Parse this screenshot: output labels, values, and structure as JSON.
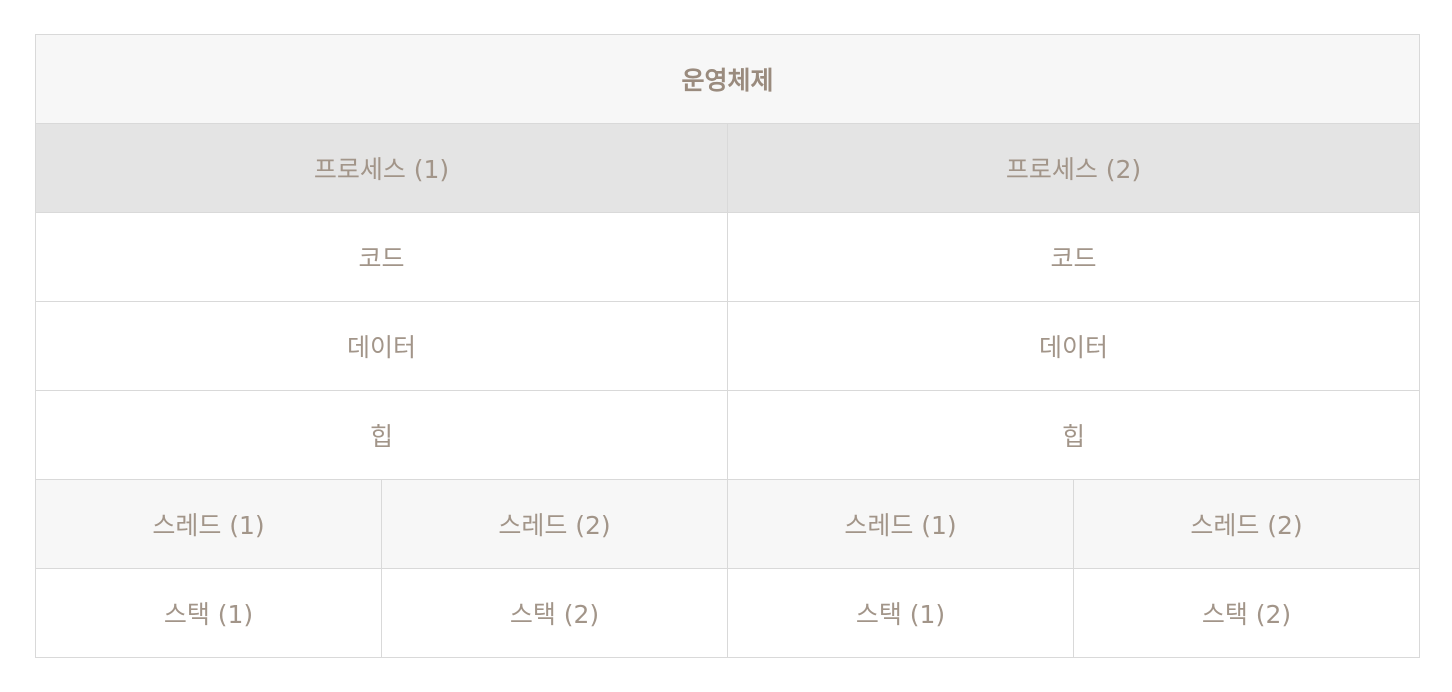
{
  "os": {
    "label": "운영체제"
  },
  "processes": [
    {
      "label": "프로세스 (1)",
      "code": "코드",
      "data": "데이터",
      "heap": "힙",
      "threads": [
        {
          "label": "스레드 (1)",
          "stack": "스택 (1)"
        },
        {
          "label": "스레드 (2)",
          "stack": "스택 (2)"
        }
      ]
    },
    {
      "label": "프로세스 (2)",
      "code": "코드",
      "data": "데이터",
      "heap": "힙",
      "threads": [
        {
          "label": "스레드 (1)",
          "stack": "스택 (1)"
        },
        {
          "label": "스레드 (2)",
          "stack": "스택 (2)"
        }
      ]
    }
  ]
}
